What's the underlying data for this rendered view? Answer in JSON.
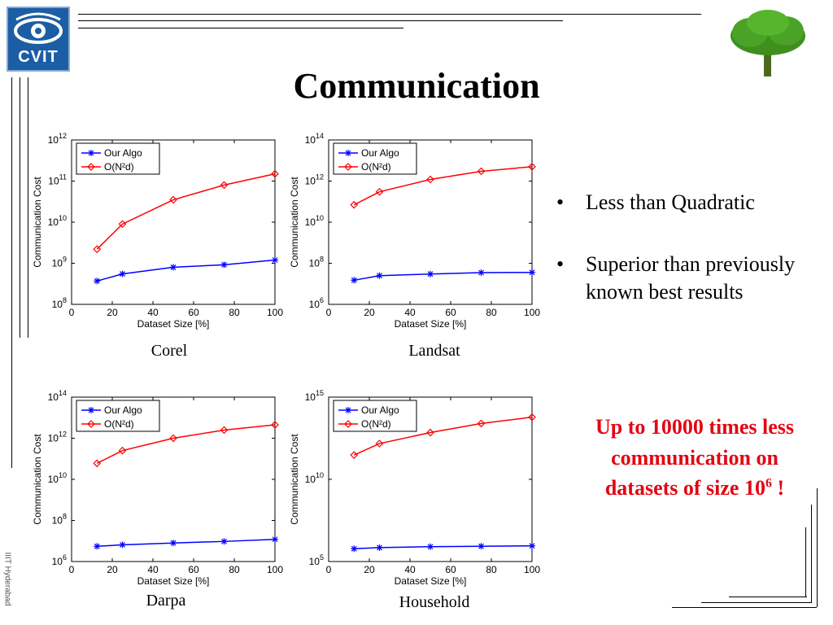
{
  "slide": {
    "title": "Communication",
    "logo_text": "CVIT",
    "footer_vertical": "IIIT Hyderabad",
    "bullets": [
      "Less than Quadratic",
      "Superior than previously known best results"
    ],
    "bullet_symbol": "•",
    "highlight_line1": "Up to 10000 times less",
    "highlight_line2": "communication on",
    "highlight_line3_pre": "datasets of  size 10",
    "highlight_sup": "6",
    "highlight_line3_post": " !",
    "highlight_color": "#e30613"
  },
  "chart_data": [
    {
      "type": "line",
      "caption": "Corel",
      "xlabel": "Dataset Size [%]",
      "ylabel": "Communication Cost",
      "log_y": true,
      "xlim": [
        0,
        100
      ],
      "ylim_exp": [
        8,
        12
      ],
      "xticks": [
        0,
        20,
        40,
        60,
        80,
        100
      ],
      "yticks_exp": [
        8,
        9,
        10,
        11,
        12
      ],
      "legend": "top-left",
      "x": [
        12.5,
        25,
        50,
        75,
        100
      ],
      "series": [
        {
          "name": "Our Algo",
          "color": "#0000ff",
          "marker": "star",
          "values": [
            370000000.0,
            550000000.0,
            800000000.0,
            920000000.0,
            1200000000.0
          ]
        },
        {
          "name": "O(N²d)",
          "color": "#ff0000",
          "marker": "diamond",
          "values": [
            2200000000.0,
            9000000000.0,
            35000000000.0,
            80000000000.0,
            150000000000.0
          ]
        }
      ]
    },
    {
      "type": "line",
      "caption": "Landsat",
      "xlabel": "Dataset Size [%]",
      "ylabel": "Communication Cost",
      "log_y": true,
      "xlim": [
        0,
        100
      ],
      "ylim_exp": [
        6,
        14
      ],
      "xticks": [
        0,
        20,
        40,
        60,
        80,
        100
      ],
      "yticks_exp": [
        6,
        8,
        10,
        12,
        14
      ],
      "legend": "top-left",
      "x": [
        12.5,
        25,
        50,
        75,
        100
      ],
      "series": [
        {
          "name": "Our Algo",
          "color": "#0000ff",
          "marker": "star",
          "values": [
            15000000.0,
            25000000.0,
            30000000.0,
            35000000.0,
            36000000.0
          ]
        },
        {
          "name": "O(N²d)",
          "color": "#ff0000",
          "marker": "diamond",
          "values": [
            70000000000.0,
            300000000000.0,
            1200000000000.0,
            3000000000000.0,
            5000000000000.0
          ]
        }
      ]
    },
    {
      "type": "line",
      "caption": "Darpa",
      "xlabel": "Dataset Size [%]",
      "ylabel": "Communication Cost",
      "log_y": true,
      "xlim": [
        0,
        100
      ],
      "ylim_exp": [
        6,
        14
      ],
      "xticks": [
        0,
        20,
        40,
        60,
        80,
        100
      ],
      "yticks_exp": [
        6,
        8,
        10,
        12,
        14
      ],
      "legend": "top-left",
      "x": [
        12.5,
        25,
        50,
        75,
        100
      ],
      "series": [
        {
          "name": "Our Algo",
          "color": "#0000ff",
          "marker": "star",
          "values": [
            5500000.0,
            6500000.0,
            8000000.0,
            9500000.0,
            12000000.0
          ]
        },
        {
          "name": "O(N²d)",
          "color": "#ff0000",
          "marker": "diamond",
          "values": [
            60000000000.0,
            250000000000.0,
            1000000000000.0,
            2500000000000.0,
            4500000000000.0
          ]
        }
      ]
    },
    {
      "type": "line",
      "caption": "Household",
      "xlabel": "Dataset Size [%]",
      "ylabel": "Communication Cost",
      "log_y": true,
      "xlim": [
        0,
        100
      ],
      "ylim_exp": [
        5,
        15
      ],
      "xticks": [
        0,
        20,
        40,
        60,
        80,
        100
      ],
      "yticks_exp": [
        5,
        10,
        15
      ],
      "legend": "top-left",
      "x": [
        12.5,
        25,
        50,
        75,
        100
      ],
      "series": [
        {
          "name": "Our Algo",
          "color": "#0000ff",
          "marker": "star",
          "values": [
            600000.0,
            700000.0,
            800000.0,
            850000.0,
            900000.0
          ]
        },
        {
          "name": "O(N²d)",
          "color": "#ff0000",
          "marker": "diamond",
          "values": [
            300000000000.0,
            1500000000000.0,
            7000000000000.0,
            25000000000000.0,
            60000000000000.0
          ]
        }
      ]
    }
  ]
}
